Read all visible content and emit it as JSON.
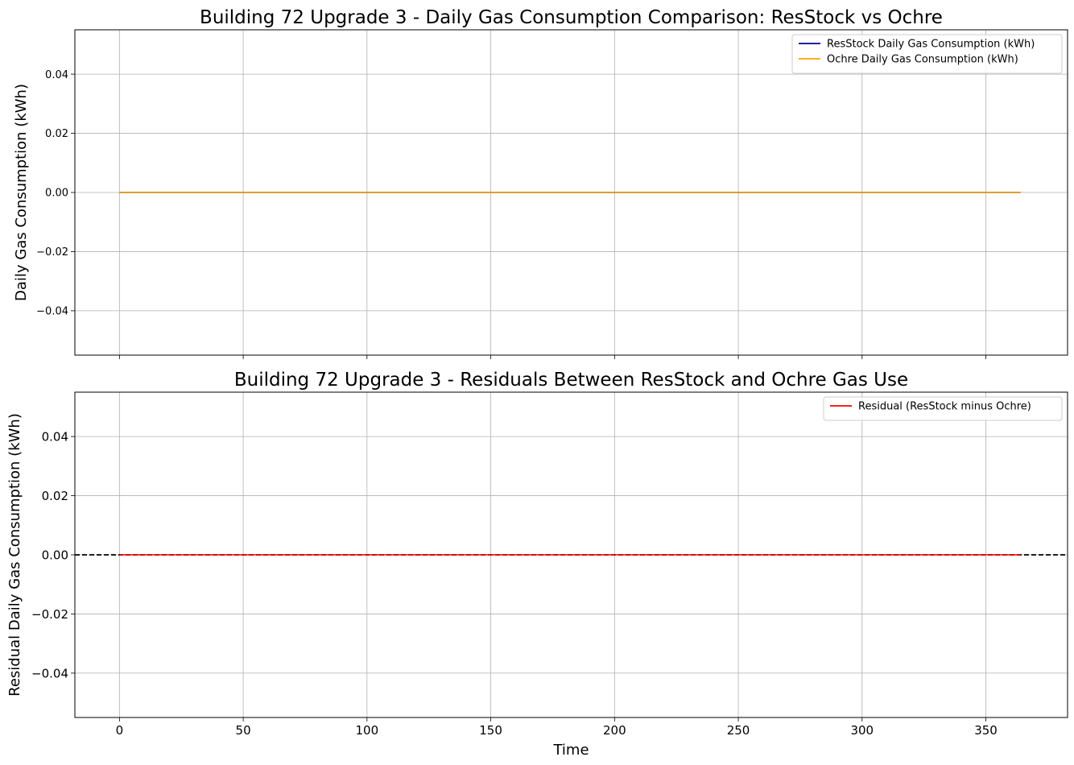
{
  "chart_data": [
    {
      "type": "line",
      "title": "Building 72 Upgrade 3 - Daily Gas Consumption Comparison: ResStock vs Ochre",
      "xlabel": "",
      "ylabel": "Daily Gas Consumption (kWh)",
      "xlim": [
        -18,
        383
      ],
      "ylim": [
        -0.055,
        0.055
      ],
      "xticks": [
        0,
        50,
        100,
        150,
        200,
        250,
        300,
        350
      ],
      "show_xticklabels": false,
      "yticks": [
        -0.04,
        -0.02,
        0.0,
        0.02,
        0.04
      ],
      "ytick_labels": [
        "−0.04",
        "−0.02",
        "0.00",
        "0.02",
        "0.04"
      ],
      "grid": true,
      "legend_position": "top-right",
      "x_range": [
        0,
        364
      ],
      "series": [
        {
          "name": "ResStock Daily Gas Consumption (kWh)",
          "color": "#00008b",
          "constant": 0
        },
        {
          "name": "Ochre Daily Gas Consumption (kWh)",
          "color": "#ffa500",
          "constant": 0
        }
      ],
      "reference_line": null
    },
    {
      "type": "line",
      "title": "Building 72 Upgrade 3 - Residuals Between ResStock and Ochre Gas Use",
      "xlabel": "Time",
      "ylabel": "Residual Daily Gas Consumption (kWh)",
      "xlim": [
        -18,
        383
      ],
      "ylim": [
        -0.055,
        0.055
      ],
      "xticks": [
        0,
        50,
        100,
        150,
        200,
        250,
        300,
        350
      ],
      "show_xticklabels": true,
      "yticks": [
        -0.04,
        -0.02,
        0.0,
        0.02,
        0.04
      ],
      "ytick_labels": [
        "−0.04",
        "−0.02",
        "0.00",
        "0.02",
        "0.04"
      ],
      "grid": true,
      "legend_position": "top-right",
      "x_range": [
        0,
        364
      ],
      "series": [
        {
          "name": "Residual (ResStock minus Ochre)",
          "color": "#ff0000",
          "constant": 0
        }
      ],
      "reference_line": {
        "y": 0,
        "color": "#000000",
        "style": "dashed"
      }
    }
  ]
}
